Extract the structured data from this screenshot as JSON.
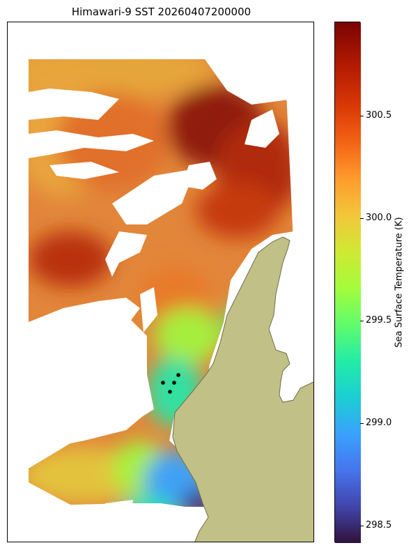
{
  "title": "Himawari-9 SST 20260407200000",
  "chart_data": {
    "type": "heatmap",
    "title": "Himawari-9 SST 20260407200000",
    "colorbar": {
      "label": "Sea Surface Temperature (K)",
      "range": [
        298.42,
        300.96
      ],
      "ticks": [
        298.5,
        299.0,
        299.5,
        300.0,
        300.5
      ],
      "tick_labels": [
        "298.5",
        "299.0",
        "299.5",
        "300.0",
        "300.5"
      ],
      "colormap": "turbo"
    },
    "grid": false,
    "land_color": "#c0c087",
    "regions": [
      {
        "name": "north",
        "approx_sst_K": 300.3
      },
      {
        "name": "northeast-core",
        "approx_sst_K": 300.85
      },
      {
        "name": "west-mid",
        "approx_sst_K": 300.7
      },
      {
        "name": "central",
        "approx_sst_K": 300.4
      },
      {
        "name": "south-central",
        "approx_sst_K": 299.6
      },
      {
        "name": "south-west",
        "approx_sst_K": 299.95
      },
      {
        "name": "south-coastal",
        "approx_sst_K": 299.3
      },
      {
        "name": "far-south",
        "approx_sst_K": 298.9
      }
    ]
  }
}
